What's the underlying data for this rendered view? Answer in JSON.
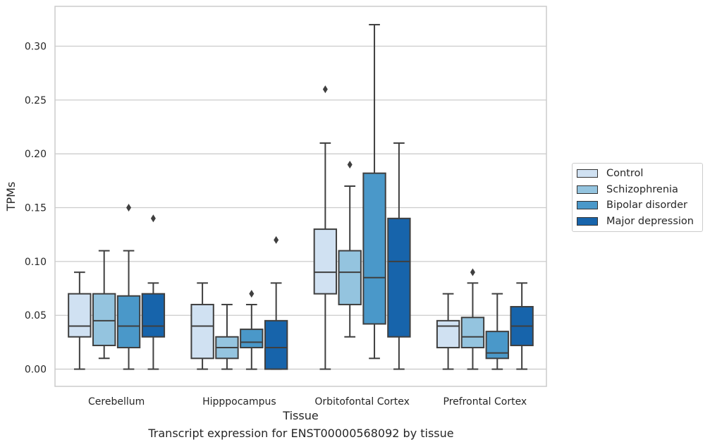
{
  "chart_data": {
    "type": "box",
    "title": "",
    "caption": "Transcript expression for ENST00000568092 by tissue",
    "xlabel": "Tissue",
    "ylabel": "TPMs",
    "ylim": [
      -0.016,
      0.337
    ],
    "yticks": [
      "0.00",
      "0.05",
      "0.10",
      "0.15",
      "0.20",
      "0.25",
      "0.30"
    ],
    "grid": true,
    "legend_position": "right",
    "categories": [
      "Cerebellum",
      "Hipppocampus",
      "Orbitofontal Cortex",
      "Prefrontal Cortex"
    ],
    "series": [
      {
        "name": "Control",
        "color": "#d0e1f2",
        "boxes": [
          {
            "whislo": 0.0,
            "q1": 0.03,
            "med": 0.04,
            "q3": 0.07,
            "whishi": 0.09,
            "fliers": []
          },
          {
            "whislo": 0.0,
            "q1": 0.01,
            "med": 0.04,
            "q3": 0.06,
            "whishi": 0.08,
            "fliers": []
          },
          {
            "whislo": 0.0,
            "q1": 0.07,
            "med": 0.09,
            "q3": 0.13,
            "whishi": 0.21,
            "fliers": [
              0.26
            ]
          },
          {
            "whislo": 0.0,
            "q1": 0.02,
            "med": 0.04,
            "q3": 0.045,
            "whishi": 0.07,
            "fliers": []
          }
        ]
      },
      {
        "name": "Schizophrenia",
        "color": "#94c4df",
        "boxes": [
          {
            "whislo": 0.01,
            "q1": 0.022,
            "med": 0.045,
            "q3": 0.07,
            "whishi": 0.11,
            "fliers": []
          },
          {
            "whislo": 0.0,
            "q1": 0.01,
            "med": 0.02,
            "q3": 0.03,
            "whishi": 0.06,
            "fliers": []
          },
          {
            "whislo": 0.03,
            "q1": 0.06,
            "med": 0.09,
            "q3": 0.11,
            "whishi": 0.17,
            "fliers": [
              0.19
            ]
          },
          {
            "whislo": 0.0,
            "q1": 0.02,
            "med": 0.03,
            "q3": 0.048,
            "whishi": 0.08,
            "fliers": [
              0.09
            ]
          }
        ]
      },
      {
        "name": "Bipolar disorder",
        "color": "#4a98c9",
        "boxes": [
          {
            "whislo": 0.0,
            "q1": 0.02,
            "med": 0.04,
            "q3": 0.068,
            "whishi": 0.11,
            "fliers": [
              0.15
            ]
          },
          {
            "whislo": 0.0,
            "q1": 0.02,
            "med": 0.025,
            "q3": 0.037,
            "whishi": 0.06,
            "fliers": [
              0.07
            ]
          },
          {
            "whislo": 0.01,
            "q1": 0.042,
            "med": 0.085,
            "q3": 0.182,
            "whishi": 0.32,
            "fliers": []
          },
          {
            "whislo": 0.0,
            "q1": 0.01,
            "med": 0.015,
            "q3": 0.035,
            "whishi": 0.07,
            "fliers": []
          }
        ]
      },
      {
        "name": "Major depression",
        "color": "#1764ab",
        "boxes": [
          {
            "whislo": 0.0,
            "q1": 0.03,
            "med": 0.04,
            "q3": 0.07,
            "whishi": 0.08,
            "fliers": [
              0.14
            ]
          },
          {
            "whislo": 0.0,
            "q1": 0.0,
            "med": 0.02,
            "q3": 0.045,
            "whishi": 0.08,
            "fliers": [
              0.12
            ]
          },
          {
            "whislo": 0.0,
            "q1": 0.03,
            "med": 0.1,
            "q3": 0.14,
            "whishi": 0.21,
            "fliers": []
          },
          {
            "whislo": 0.0,
            "q1": 0.022,
            "med": 0.04,
            "q3": 0.058,
            "whishi": 0.08,
            "fliers": []
          }
        ]
      }
    ]
  }
}
